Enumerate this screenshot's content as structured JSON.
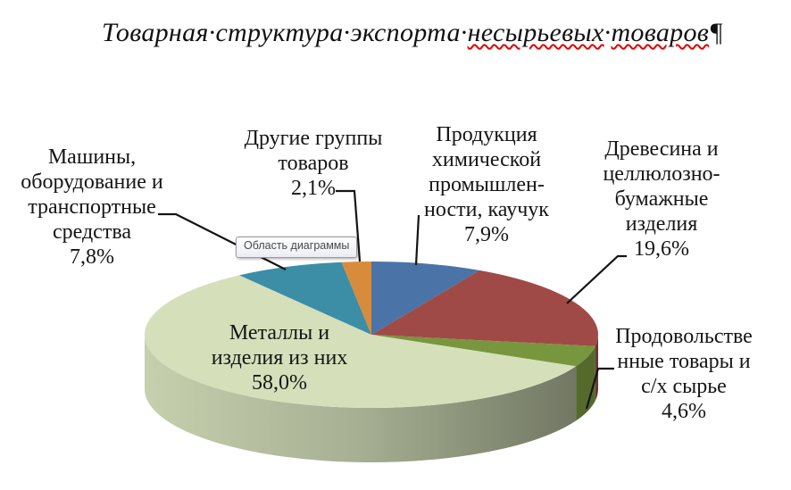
{
  "title": {
    "part1": "Товарная·структура·экспорта·",
    "misspelled_1": "несырьевых",
    "separator": "·",
    "misspelled_2": "товаров",
    "pilcrow": "¶",
    "misspell_underline_color": "#e00000"
  },
  "tooltip": {
    "text": "Область диаграммы"
  },
  "chart_data": {
    "type": "pie",
    "style": "3d",
    "title": "Товарная структура экспорта несырьевых товаров",
    "unit": "%",
    "start_angle_deg": 0,
    "direction": "clockwise",
    "legend": "none",
    "slices": [
      {
        "key": "chemical",
        "label": "Продукция химической промышленности, каучук",
        "value": 7.9,
        "color": "#4a74a7"
      },
      {
        "key": "wood",
        "label": "Древесина и целлюлозно-бумажные изделия",
        "value": 19.6,
        "color": "#a04a47"
      },
      {
        "key": "food",
        "label": "Продовольственные товары и с/х сырье",
        "value": 4.6,
        "color": "#78963e"
      },
      {
        "key": "metals",
        "label": "Металлы и изделия из них",
        "value": 58.0,
        "color": "#d5e0bb"
      },
      {
        "key": "machines",
        "label": "Машины, оборудование и транспортные средства",
        "value": 7.8,
        "color": "#3b8ea6"
      },
      {
        "key": "other",
        "label": "Другие группы товаров",
        "value": 2.1,
        "color": "#d98b3c"
      }
    ]
  },
  "labels": {
    "machines": {
      "lines": [
        "Машины,",
        "оборудование и",
        "транспортные",
        "средства",
        "7,8%"
      ]
    },
    "other": {
      "lines": [
        "Другие группы",
        "товаров",
        "2,1%"
      ]
    },
    "chemical": {
      "lines": [
        "Продукция",
        "химической",
        "промышлен-",
        "ности, каучук",
        "7,9%"
      ]
    },
    "wood": {
      "lines": [
        "Древесина и",
        "целлюлозно-",
        "бумажные",
        "изделия",
        "19,6%"
      ]
    },
    "food": {
      "lines": [
        "Продовольстве",
        "нные товары и",
        "с/х сырье",
        "4,6%"
      ]
    },
    "metals": {
      "lines": [
        "Металлы и",
        "изделия из них",
        "58,0%"
      ]
    }
  }
}
